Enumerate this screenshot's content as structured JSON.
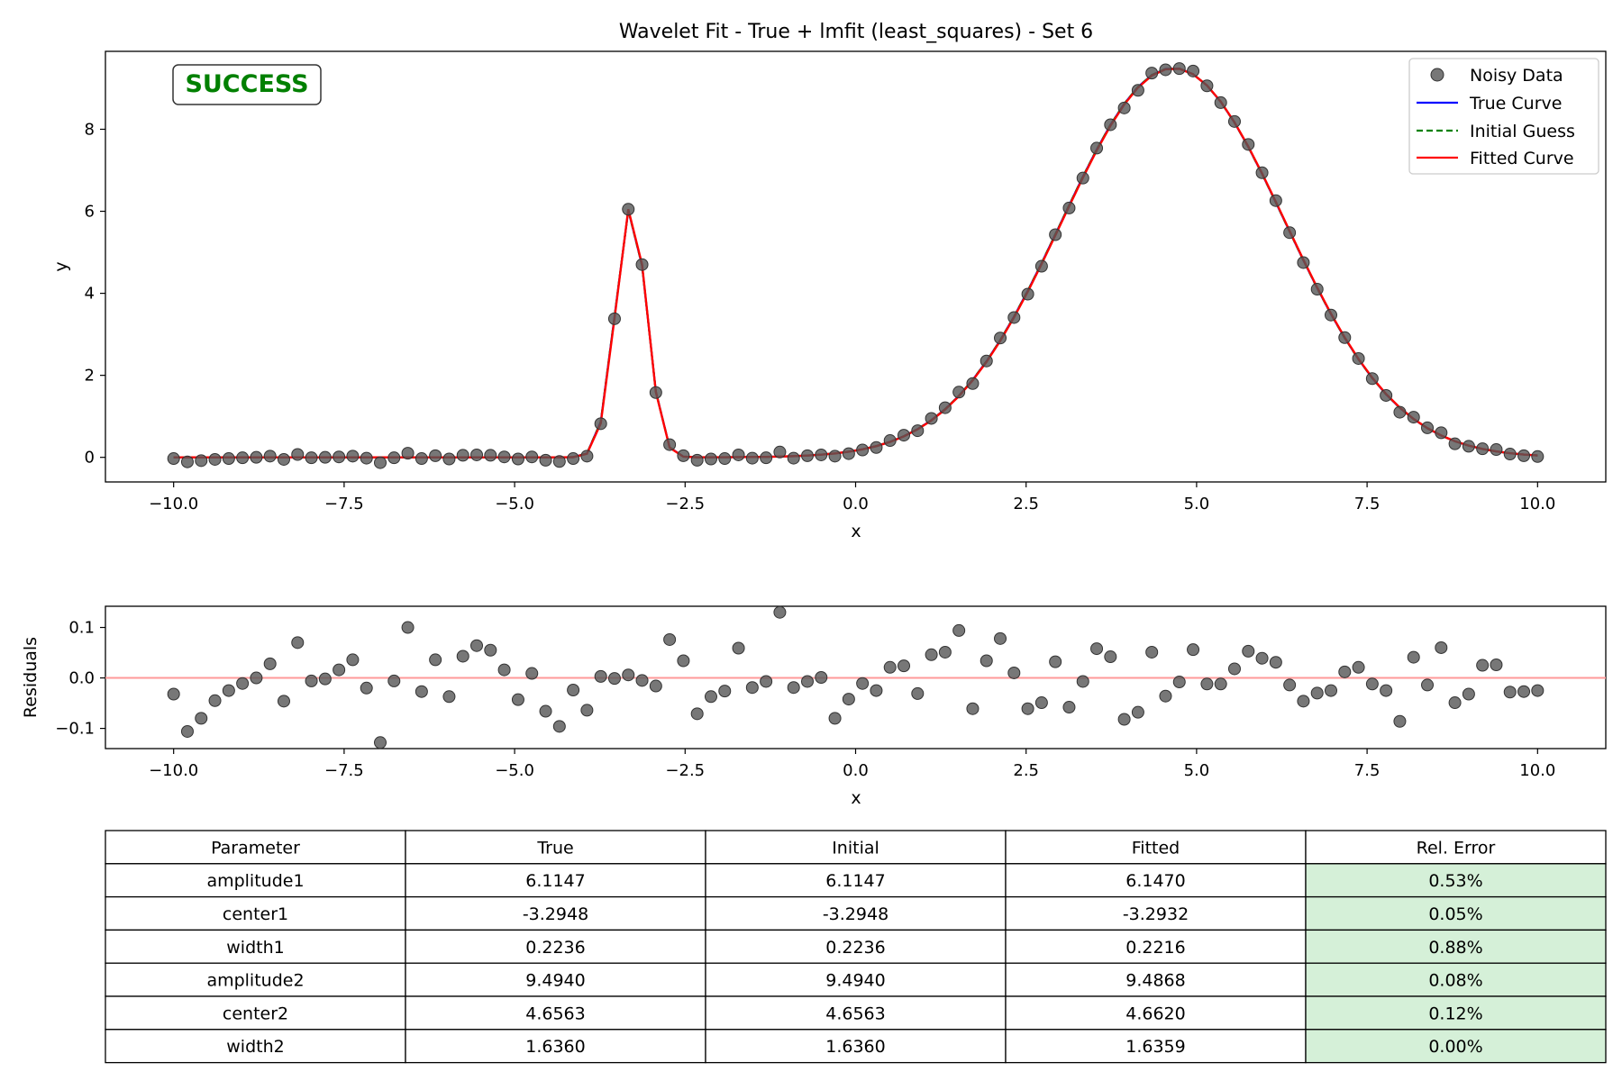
{
  "chart_data": [
    {
      "type": "scatter",
      "title": "Wavelet Fit - True + lmfit (least_squares) - Set 6",
      "xlabel": "x",
      "ylabel": "y",
      "xlim": [
        -11.0,
        11.0
      ],
      "ylim": [
        -0.6,
        9.9
      ],
      "xticks": [
        -10.0,
        -7.5,
        -5.0,
        -2.5,
        0.0,
        2.5,
        5.0,
        7.5,
        10.0
      ],
      "xtick_labels": [
        "−10.0",
        "−7.5",
        "−5.0",
        "−2.5",
        "0.0",
        "2.5",
        "5.0",
        "7.5",
        "10.0"
      ],
      "yticks": [
        0,
        2,
        4,
        6,
        8
      ],
      "ytick_labels": [
        "0",
        "2",
        "4",
        "6",
        "8"
      ],
      "grid": false,
      "legend_position": "top-right",
      "status_label": "SUCCESS",
      "x": [
        -10.0,
        -9.798,
        -9.596,
        -9.394,
        -9.192,
        -8.99,
        -8.788,
        -8.586,
        -8.384,
        -8.182,
        -7.98,
        -7.778,
        -7.576,
        -7.374,
        -7.172,
        -6.97,
        -6.768,
        -6.566,
        -6.364,
        -6.162,
        -5.96,
        -5.758,
        -5.556,
        -5.354,
        -5.152,
        -4.949,
        -4.747,
        -4.545,
        -4.343,
        -4.141,
        -3.939,
        -3.737,
        -3.535,
        -3.333,
        -3.131,
        -2.929,
        -2.727,
        -2.525,
        -2.323,
        -2.121,
        -1.919,
        -1.717,
        -1.515,
        -1.313,
        -1.111,
        -0.909,
        -0.707,
        -0.505,
        -0.303,
        -0.101,
        0.101,
        0.303,
        0.505,
        0.707,
        0.909,
        1.111,
        1.313,
        1.515,
        1.717,
        1.919,
        2.121,
        2.323,
        2.525,
        2.727,
        2.929,
        3.131,
        3.333,
        3.535,
        3.737,
        3.939,
        4.141,
        4.343,
        4.545,
        4.747,
        4.949,
        5.152,
        5.354,
        5.556,
        5.758,
        5.96,
        6.162,
        6.364,
        6.566,
        6.768,
        6.97,
        7.172,
        7.374,
        7.576,
        7.778,
        7.98,
        8.182,
        8.384,
        8.586,
        8.788,
        8.99,
        9.192,
        9.394,
        9.596,
        9.798,
        10.0
      ],
      "series": [
        {
          "name": "Noisy Data",
          "kind": "points",
          "color": "#555555",
          "values": [
            -0.03,
            -0.11,
            -0.08,
            -0.05,
            -0.03,
            -0.01,
            0.0,
            0.03,
            -0.05,
            0.07,
            -0.01,
            0.0,
            0.01,
            0.03,
            -0.02,
            -0.13,
            -0.01,
            0.1,
            -0.03,
            0.04,
            -0.04,
            0.05,
            0.06,
            0.05,
            0.01,
            -0.04,
            0.01,
            -0.07,
            -0.1,
            -0.03,
            0.03,
            0.82,
            3.38,
            6.05,
            4.7,
            1.58,
            0.31,
            0.04,
            -0.07,
            -0.04,
            -0.03,
            0.06,
            -0.02,
            -0.01,
            0.13,
            -0.02,
            0.04,
            0.06,
            0.03,
            0.09,
            0.18,
            0.24,
            0.41,
            0.54,
            0.65,
            0.95,
            1.21,
            1.59,
            1.8,
            2.35,
            2.91,
            3.41,
            3.98,
            4.66,
            5.43,
            6.08,
            6.81,
            7.54,
            8.11,
            8.52,
            8.95,
            9.37,
            9.45,
            9.48,
            9.42,
            9.06,
            8.65,
            8.19,
            7.63,
            6.94,
            6.26,
            5.48,
            4.75,
            4.1,
            3.47,
            2.92,
            2.41,
            1.92,
            1.51,
            1.1,
            0.98,
            0.72,
            0.6,
            0.33,
            0.27,
            0.21,
            0.19,
            0.08,
            0.04,
            0.02
          ]
        },
        {
          "name": "True Curve",
          "kind": "line",
          "color": "#0000ff"
        },
        {
          "name": "Initial Guess",
          "kind": "dashed-line",
          "color": "#008000"
        },
        {
          "name": "Fitted Curve",
          "kind": "line",
          "color": "#ff0000"
        }
      ]
    },
    {
      "type": "scatter",
      "title": "",
      "xlabel": "x",
      "ylabel": "Residuals",
      "xlim": [
        -11.0,
        11.0
      ],
      "ylim": [
        -0.14,
        0.142
      ],
      "xticks": [
        -10.0,
        -7.5,
        -5.0,
        -2.5,
        0.0,
        2.5,
        5.0,
        7.5,
        10.0
      ],
      "xtick_labels": [
        "−10.0",
        "−7.5",
        "−5.0",
        "−2.5",
        "0.0",
        "2.5",
        "5.0",
        "7.5",
        "10.0"
      ],
      "yticks": [
        -0.1,
        0.0,
        0.1
      ],
      "ytick_labels": [
        "−0.1",
        "0.0",
        "0.1"
      ],
      "grid": false,
      "reference_line": {
        "y": 0.0,
        "color": "#ff9999"
      },
      "x": [
        -10.0,
        -9.798,
        -9.596,
        -9.394,
        -9.192,
        -8.99,
        -8.788,
        -8.586,
        -8.384,
        -8.182,
        -7.98,
        -7.778,
        -7.576,
        -7.374,
        -7.172,
        -6.97,
        -6.768,
        -6.566,
        -6.364,
        -6.162,
        -5.96,
        -5.758,
        -5.556,
        -5.354,
        -5.152,
        -4.949,
        -4.747,
        -4.545,
        -4.343,
        -4.141,
        -3.939,
        -3.737,
        -3.535,
        -3.333,
        -3.131,
        -2.929,
        -2.727,
        -2.525,
        -2.323,
        -2.121,
        -1.919,
        -1.717,
        -1.515,
        -1.313,
        -1.111,
        -0.909,
        -0.707,
        -0.505,
        -0.303,
        -0.101,
        0.101,
        0.303,
        0.505,
        0.707,
        0.909,
        1.111,
        1.313,
        1.515,
        1.717,
        1.919,
        2.121,
        2.323,
        2.525,
        2.727,
        2.929,
        3.131,
        3.333,
        3.535,
        3.737,
        3.939,
        4.141,
        4.343,
        4.545,
        4.747,
        4.949,
        5.152,
        5.354,
        5.556,
        5.758,
        5.96,
        6.162,
        6.364,
        6.566,
        6.768,
        6.97,
        7.172,
        7.374,
        7.576,
        7.778,
        7.98,
        8.182,
        8.384,
        8.586,
        8.788,
        8.99,
        9.192,
        9.394,
        9.596,
        9.798,
        10.0
      ],
      "series": [
        {
          "name": "",
          "kind": "points",
          "color": "#555555",
          "values": [
            -0.032,
            -0.106,
            -0.08,
            -0.045,
            -0.025,
            -0.011,
            0.0,
            0.028,
            -0.046,
            0.07,
            -0.006,
            -0.002,
            0.016,
            0.036,
            -0.02,
            -0.128,
            -0.006,
            0.1,
            -0.027,
            0.036,
            -0.037,
            0.043,
            0.064,
            0.055,
            0.016,
            -0.043,
            0.009,
            -0.066,
            -0.096,
            -0.024,
            -0.064,
            0.003,
            -0.001,
            0.006,
            -0.005,
            -0.016,
            0.076,
            0.034,
            -0.071,
            -0.037,
            -0.026,
            0.059,
            -0.019,
            -0.007,
            0.13,
            -0.019,
            -0.007,
            0.001,
            -0.08,
            -0.042,
            -0.011,
            -0.025,
            0.021,
            0.024,
            -0.031,
            0.046,
            0.051,
            0.094,
            -0.061,
            0.034,
            0.078,
            0.01,
            -0.061,
            -0.049,
            0.032,
            -0.058,
            -0.007,
            0.058,
            0.042,
            -0.082,
            -0.068,
            0.051,
            -0.036,
            -0.008,
            0.056,
            -0.012,
            -0.012,
            0.018,
            0.053,
            0.039,
            0.031,
            -0.014,
            -0.046,
            -0.03,
            -0.025,
            0.012,
            0.021,
            -0.012,
            -0.025,
            -0.086,
            0.041,
            -0.014,
            0.06,
            -0.049,
            -0.032,
            0.025,
            0.026,
            -0.028,
            -0.027,
            -0.025
          ]
        }
      ]
    },
    {
      "type": "table",
      "columns": [
        "Parameter",
        "True",
        "Initial",
        "Fitted",
        "Rel. Error"
      ],
      "rows": [
        [
          "amplitude1",
          "6.1147",
          "6.1147",
          "6.1470",
          "0.53%"
        ],
        [
          "center1",
          "-3.2948",
          "-3.2948",
          "-3.2932",
          "0.05%"
        ],
        [
          "width1",
          "0.2236",
          "0.2236",
          "0.2216",
          "0.88%"
        ],
        [
          "amplitude2",
          "9.4940",
          "9.4940",
          "9.4868",
          "0.08%"
        ],
        [
          "center2",
          "4.6563",
          "4.6563",
          "4.6620",
          "0.12%"
        ],
        [
          "width2",
          "1.6360",
          "1.6360",
          "1.6359",
          "0.00%"
        ]
      ],
      "error_cell_color": "#d5f0d8"
    }
  ]
}
